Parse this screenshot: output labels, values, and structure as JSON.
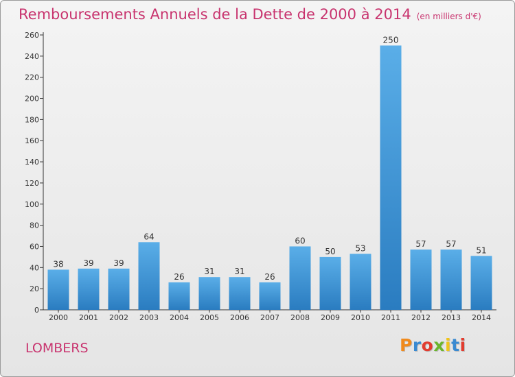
{
  "header": {
    "title": "Remboursements Annuels de la Dette de 2000 à 2014",
    "subtitle": "(en milliers d'€)"
  },
  "footer": {
    "town": "LOMBERS",
    "brand": "Proxiti",
    "brand_colors": [
      "#f08a1c",
      "#3a8ad1",
      "#e23c2f",
      "#6bb52e",
      "#f0c419",
      "#3a8ad1",
      "#e23c2f"
    ]
  },
  "chart_data": {
    "type": "bar",
    "title": "Remboursements Annuels de la Dette de 2000 à 2014",
    "subtitle": "(en milliers d'€)",
    "xlabel": "",
    "ylabel": "",
    "categories": [
      "2000",
      "2001",
      "2002",
      "2003",
      "2004",
      "2005",
      "2006",
      "2007",
      "2008",
      "2009",
      "2010",
      "2011",
      "2012",
      "2013",
      "2014"
    ],
    "values": [
      38,
      39,
      39,
      64,
      26,
      31,
      31,
      26,
      60,
      50,
      53,
      250,
      57,
      57,
      51
    ],
    "ylim": [
      0,
      260
    ],
    "yticks": [
      0,
      20,
      40,
      60,
      80,
      100,
      120,
      140,
      160,
      180,
      200,
      220,
      240,
      260
    ],
    "grid": false,
    "legend": "none",
    "bar_color_top": "#5aaee8",
    "bar_color_bottom": "#2a7cc0"
  }
}
